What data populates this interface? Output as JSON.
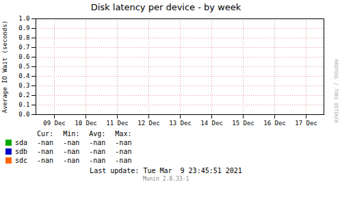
{
  "chart_data": {
    "type": "line",
    "title": "Disk latency per device - by week",
    "y_label": "Average IO Wait (seconds)",
    "categories": [
      "09 Dec",
      "10 Dec",
      "11 Dec",
      "12 Dec",
      "13 Dec",
      "14 Dec",
      "15 Dec",
      "16 Dec",
      "17 Dec"
    ],
    "series": [
      {
        "name": "sda",
        "color": "#00aa00",
        "values": [
          null,
          null,
          null,
          null,
          null,
          null,
          null,
          null,
          null
        ]
      },
      {
        "name": "sdb",
        "color": "#0000cc",
        "values": [
          null,
          null,
          null,
          null,
          null,
          null,
          null,
          null,
          null
        ]
      },
      {
        "name": "sdc",
        "color": "#ff6600",
        "values": [
          null,
          null,
          null,
          null,
          null,
          null,
          null,
          null,
          null
        ]
      }
    ],
    "ylim": [
      0,
      1
    ],
    "yticks": [
      {
        "value": 0,
        "label": "0.0"
      },
      0.1,
      0.2,
      0.3,
      0.4,
      0.5,
      0.6,
      0.7,
      0.8,
      0.9,
      {
        "value": 1,
        "label": "1.0"
      }
    ],
    "grid": true,
    "legend": "bottom",
    "table": {
      "columns": [
        "Cur:",
        "Min:",
        "Avg:",
        "Max:"
      ],
      "rows": [
        [
          "-nan",
          "-nan",
          "-nan",
          "-nan"
        ],
        [
          "-nan",
          "-nan",
          "-nan",
          "-nan"
        ],
        [
          "-nan",
          "-nan",
          "-nan",
          "-nan"
        ]
      ]
    },
    "annotations": [
      "RRDTOOL / TOBI OETIKER",
      "Last update: Tue Mar  9 23:45:51 2021",
      "Munin 2.0.33-1"
    ]
  }
}
